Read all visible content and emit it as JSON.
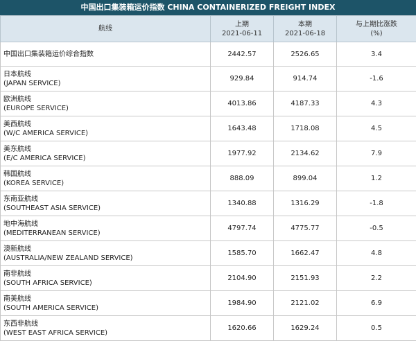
{
  "title": "中国出口集装箱运价指数 CHINA CONTAINERIZED FREIGHT INDEX",
  "headers": {
    "route": "航线",
    "prev_label": "上期",
    "prev_date": "2021-06-11",
    "curr_label": "本期",
    "curr_date": "2021-06-18",
    "change_label": "与上期比涨跌",
    "change_unit": "(%)"
  },
  "rows": [
    {
      "cn": "中国出口集装箱运价综合指数",
      "en": "",
      "prev": "2442.57",
      "curr": "2526.65",
      "change": "3.4"
    },
    {
      "cn": "日本航线",
      "en": "(JAPAN SERVICE)",
      "prev": "929.84",
      "curr": "914.74",
      "change": "-1.6"
    },
    {
      "cn": "欧洲航线",
      "en": "(EUROPE SERVICE)",
      "prev": "4013.86",
      "curr": "4187.33",
      "change": "4.3"
    },
    {
      "cn": "美西航线",
      "en": "(W/C AMERICA SERVICE)",
      "prev": "1643.48",
      "curr": "1718.08",
      "change": "4.5"
    },
    {
      "cn": "美东航线",
      "en": "(E/C AMERICA SERVICE)",
      "prev": "1977.92",
      "curr": "2134.62",
      "change": "7.9"
    },
    {
      "cn": "韩国航线",
      "en": "(KOREA SERVICE)",
      "prev": "888.09",
      "curr": "899.04",
      "change": "1.2"
    },
    {
      "cn": "东南亚航线",
      "en": "(SOUTHEAST ASIA SERVICE)",
      "prev": "1340.88",
      "curr": "1316.29",
      "change": "-1.8"
    },
    {
      "cn": "地中海航线",
      "en": "(MEDITERRANEAN SERVICE)",
      "prev": "4797.74",
      "curr": "4775.77",
      "change": "-0.5"
    },
    {
      "cn": "澳新航线",
      "en": "(AUSTRALIA/NEW ZEALAND SERVICE)",
      "prev": "1585.70",
      "curr": "1662.47",
      "change": "4.8"
    },
    {
      "cn": "南非航线",
      "en": "(SOUTH AFRICA SERVICE)",
      "prev": "2104.90",
      "curr": "2151.93",
      "change": "2.2"
    },
    {
      "cn": "南美航线",
      "en": "(SOUTH AMERICA SERVICE)",
      "prev": "1984.90",
      "curr": "2121.02",
      "change": "6.9"
    },
    {
      "cn": "东西非航线",
      "en": "(WEST EAST AFRICA SERVICE)",
      "prev": "1620.66",
      "curr": "1629.24",
      "change": "0.5"
    }
  ]
}
